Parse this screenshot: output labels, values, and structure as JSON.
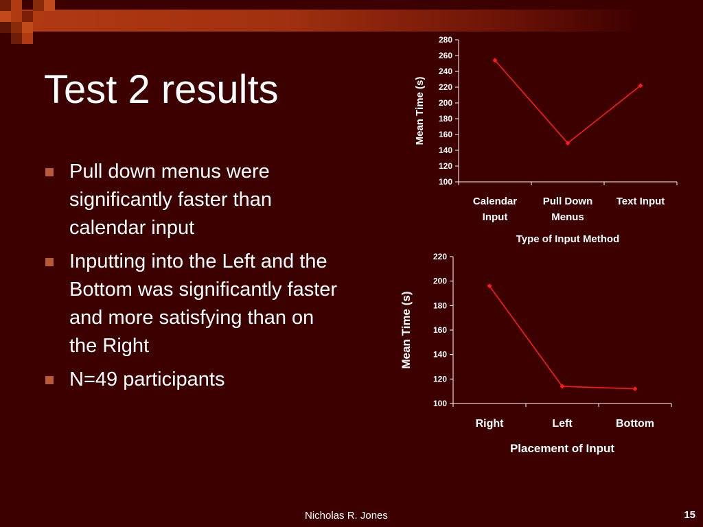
{
  "slide": {
    "title": "Test 2 results",
    "bullets": [
      "Pull down menus were significantly faster than calendar input",
      "Inputting into the Left and the Bottom was significantly faster and more satisfying than on the Right",
      "N=49 participants"
    ],
    "footer_author": "Nicholas R. Jones",
    "page_number": "15",
    "colors": {
      "background": "#3d0000",
      "accent_band": "#b23a12",
      "line": "#ff1a1a",
      "bullet": "#b85a3a"
    }
  },
  "chart_data": [
    {
      "type": "line",
      "categories": [
        "Calendar Input",
        "Pull Down Menus",
        "Text Input"
      ],
      "category_lines": [
        [
          "Calendar",
          "Input"
        ],
        [
          "Pull Down",
          "Menus"
        ],
        [
          "Text Input"
        ]
      ],
      "series": [
        {
          "values": [
            254,
            149,
            222
          ]
        }
      ],
      "xlabel": "Type of Input Method",
      "ylabel": "Mean Time (s)",
      "ylim": [
        100,
        280
      ],
      "yticks": [
        100,
        120,
        140,
        160,
        180,
        200,
        220,
        240,
        260,
        280
      ],
      "grid": false,
      "legend": "none"
    },
    {
      "type": "line",
      "categories": [
        "Right",
        "Left",
        "Bottom"
      ],
      "category_lines": [
        [
          "Right"
        ],
        [
          "Left"
        ],
        [
          "Bottom"
        ]
      ],
      "series": [
        {
          "values": [
            196,
            114,
            112
          ]
        }
      ],
      "xlabel": "Placement of Input",
      "ylabel": "Mean Time (s)",
      "ylim": [
        100,
        220
      ],
      "yticks": [
        100,
        120,
        140,
        160,
        180,
        200,
        220
      ],
      "grid": false,
      "legend": "none"
    }
  ]
}
